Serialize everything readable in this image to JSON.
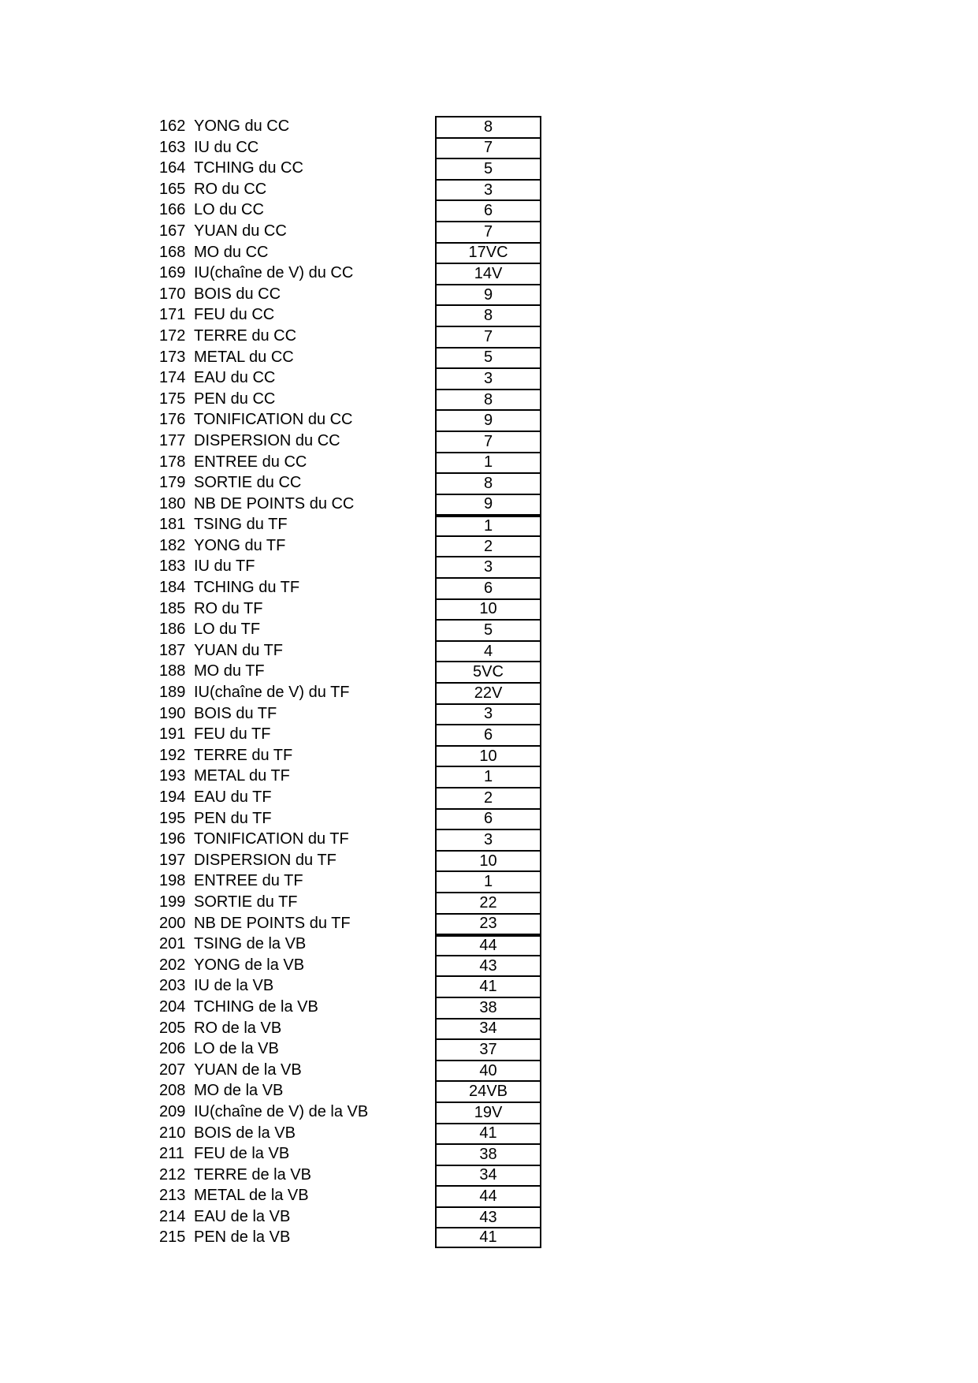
{
  "table": {
    "rows": [
      {
        "num": "162",
        "label": "YONG du CC",
        "value": "8"
      },
      {
        "num": "163",
        "label": "IU du CC",
        "value": "7"
      },
      {
        "num": "164",
        "label": "TCHING du CC",
        "value": "5"
      },
      {
        "num": "165",
        "label": "RO du CC",
        "value": "3"
      },
      {
        "num": "166",
        "label": "LO du CC",
        "value": "6"
      },
      {
        "num": "167",
        "label": "YUAN du CC",
        "value": "7"
      },
      {
        "num": "168",
        "label": "MO du CC",
        "value": "17VC"
      },
      {
        "num": "169",
        "label": "IU(chaîne de V) du CC",
        "value": "14V"
      },
      {
        "num": "170",
        "label": "BOIS du CC",
        "value": "9"
      },
      {
        "num": "171",
        "label": "FEU du CC",
        "value": "8"
      },
      {
        "num": "172",
        "label": "TERRE du CC",
        "value": "7"
      },
      {
        "num": "173",
        "label": "METAL du CC",
        "value": "5"
      },
      {
        "num": "174",
        "label": "EAU du CC",
        "value": "3"
      },
      {
        "num": "175",
        "label": "PEN du CC",
        "value": "8"
      },
      {
        "num": "176",
        "label": "TONIFICATION du CC",
        "value": "9"
      },
      {
        "num": "177",
        "label": "DISPERSION du CC",
        "value": "7"
      },
      {
        "num": "178",
        "label": "ENTREE du CC",
        "value": "1"
      },
      {
        "num": "179",
        "label": "SORTIE du CC",
        "value": "8"
      },
      {
        "num": "180",
        "label": "NB DE POINTS du CC",
        "value": "9"
      },
      {
        "num": "181",
        "label": "TSING du TF",
        "value": "1",
        "section_start": true
      },
      {
        "num": "182",
        "label": "YONG du TF",
        "value": "2"
      },
      {
        "num": "183",
        "label": "IU du TF",
        "value": "3"
      },
      {
        "num": "184",
        "label": "TCHING du TF",
        "value": "6"
      },
      {
        "num": "185",
        "label": "RO du TF",
        "value": "10"
      },
      {
        "num": "186",
        "label": "LO du TF",
        "value": "5"
      },
      {
        "num": "187",
        "label": "YUAN du TF",
        "value": "4"
      },
      {
        "num": "188",
        "label": "MO du TF",
        "value": "5VC"
      },
      {
        "num": "189",
        "label": "IU(chaîne de V) du TF",
        "value": "22V"
      },
      {
        "num": "190",
        "label": "BOIS du TF",
        "value": "3"
      },
      {
        "num": "191",
        "label": "FEU du TF",
        "value": "6"
      },
      {
        "num": "192",
        "label": "TERRE du TF",
        "value": "10"
      },
      {
        "num": "193",
        "label": "METAL du TF",
        "value": "1"
      },
      {
        "num": "194",
        "label": "EAU du TF",
        "value": "2"
      },
      {
        "num": "195",
        "label": "PEN du TF",
        "value": "6"
      },
      {
        "num": "196",
        "label": "TONIFICATION du TF",
        "value": "3"
      },
      {
        "num": "197",
        "label": "DISPERSION du TF",
        "value": "10"
      },
      {
        "num": "198",
        "label": "ENTREE du TF",
        "value": "1"
      },
      {
        "num": "199",
        "label": "SORTIE du TF",
        "value": "22"
      },
      {
        "num": "200",
        "label": "NB DE POINTS du TF",
        "value": "23"
      },
      {
        "num": "201",
        "label": "TSING de la VB",
        "value": "44",
        "section_start": true
      },
      {
        "num": "202",
        "label": "YONG de la VB",
        "value": "43"
      },
      {
        "num": "203",
        "label": "IU de la VB",
        "value": "41"
      },
      {
        "num": "204",
        "label": "TCHING de la VB",
        "value": "38"
      },
      {
        "num": "205",
        "label": "RO de la VB",
        "value": "34"
      },
      {
        "num": "206",
        "label": "LO de la VB",
        "value": "37"
      },
      {
        "num": "207",
        "label": "YUAN de la VB",
        "value": "40"
      },
      {
        "num": "208",
        "label": "MO de la VB",
        "value": "24VB"
      },
      {
        "num": "209",
        "label": "IU(chaîne de V) de la VB",
        "value": "19V"
      },
      {
        "num": "210",
        "label": "BOIS de la VB",
        "value": "41"
      },
      {
        "num": "211",
        "label": "FEU de la VB",
        "value": "38"
      },
      {
        "num": "212",
        "label": "TERRE de la VB",
        "value": "34"
      },
      {
        "num": "213",
        "label": "METAL de la VB",
        "value": "44"
      },
      {
        "num": "214",
        "label": "EAU de la VB",
        "value": "43"
      },
      {
        "num": "215",
        "label": "PEN de la VB",
        "value": "41"
      }
    ]
  }
}
